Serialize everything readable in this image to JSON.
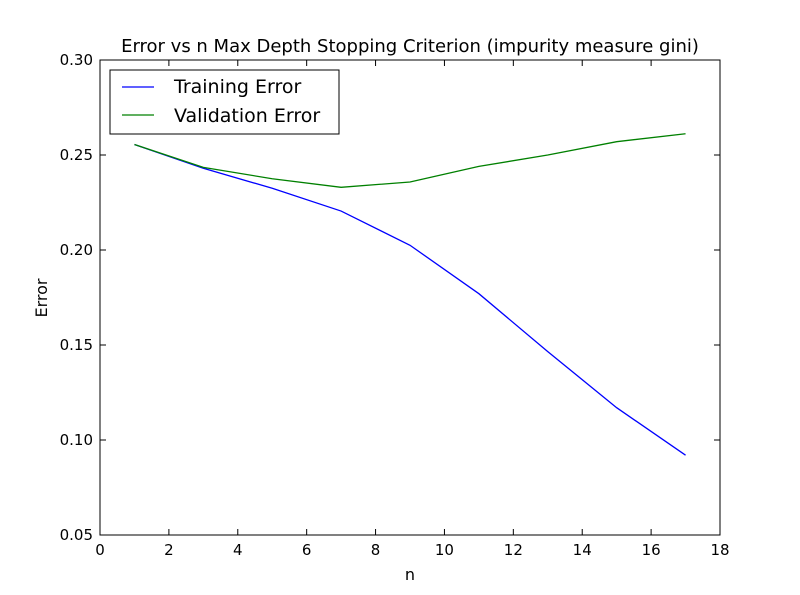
{
  "chart_data": {
    "type": "line",
    "title": "Error vs n Max Depth Stopping Criterion  (impurity measure gini)",
    "xlabel": "n",
    "ylabel": "Error",
    "xlim": [
      0,
      18
    ],
    "ylim": [
      0.05,
      0.3
    ],
    "x_ticks": [
      0,
      2,
      4,
      6,
      8,
      10,
      12,
      14,
      16,
      18
    ],
    "x_tick_labels": [
      "0",
      "2",
      "4",
      "6",
      "8",
      "10",
      "12",
      "14",
      "16",
      "18"
    ],
    "y_ticks": [
      0.05,
      0.1,
      0.15,
      0.2,
      0.25,
      0.3
    ],
    "y_tick_labels": [
      "0.05",
      "0.10",
      "0.15",
      "0.20",
      "0.25",
      "0.30"
    ],
    "grid": false,
    "legend_position": "top-left",
    "x": [
      1,
      3,
      5,
      7,
      9,
      11,
      13,
      15,
      17
    ],
    "series": [
      {
        "name": "Training Error",
        "color": "#0000ff",
        "values": [
          0.2555,
          0.243,
          0.2325,
          0.2205,
          0.2025,
          0.177,
          0.1465,
          0.117,
          0.092
        ]
      },
      {
        "name": "Validation Error",
        "color": "#008000",
        "values": [
          0.2555,
          0.2435,
          0.2375,
          0.233,
          0.2358,
          0.244,
          0.25,
          0.257,
          0.2612
        ]
      }
    ]
  }
}
